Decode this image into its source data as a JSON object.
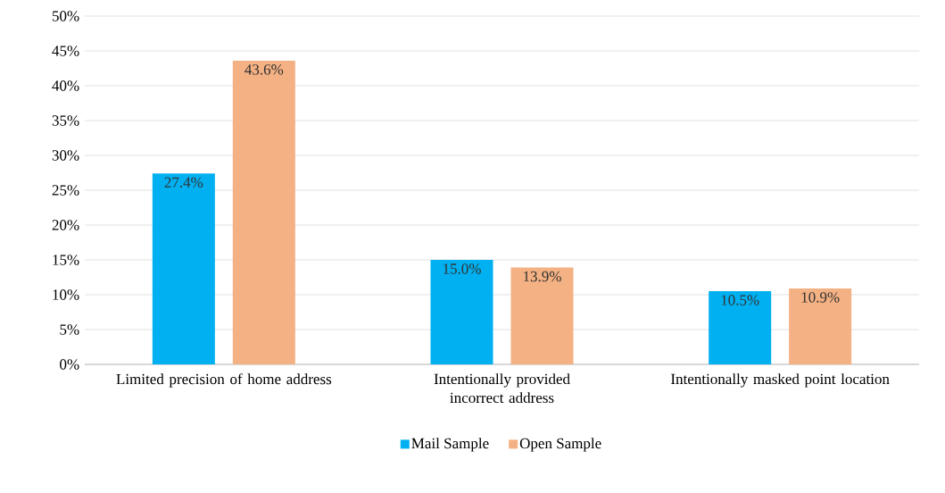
{
  "chart_data": {
    "type": "bar",
    "categories": [
      "Limited precision of home address",
      "Intentionally provided incorrect address",
      "Intentionally masked point location"
    ],
    "series": [
      {
        "name": "Mail Sample",
        "color": "#00b0f0",
        "values": [
          27.4,
          15.0,
          10.5
        ],
        "value_labels": [
          "27.4%",
          "15.0%",
          "10.5%"
        ]
      },
      {
        "name": "Open Sample",
        "color": "#f4b183",
        "values": [
          43.6,
          13.9,
          10.9
        ],
        "value_labels": [
          "43.6%",
          "13.9%",
          "10.9%"
        ]
      }
    ],
    "ylim": [
      0,
      50
    ],
    "yticks": [
      {
        "value": 0,
        "label": "0%"
      },
      {
        "value": 5,
        "label": "5%"
      },
      {
        "value": 10,
        "label": "10%"
      },
      {
        "value": 15,
        "label": "15%"
      },
      {
        "value": 20,
        "label": "20%"
      },
      {
        "value": 25,
        "label": "25%"
      },
      {
        "value": 30,
        "label": "30%"
      },
      {
        "value": 35,
        "label": "35%"
      },
      {
        "value": 40,
        "label": "40%"
      },
      {
        "value": 45,
        "label": "45%"
      },
      {
        "value": 50,
        "label": "50%"
      }
    ],
    "grid": "y",
    "legend": "bottom"
  }
}
